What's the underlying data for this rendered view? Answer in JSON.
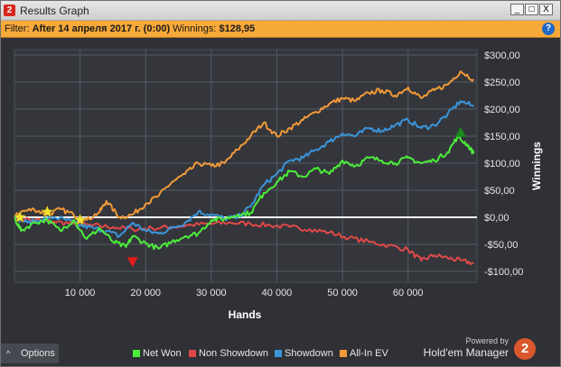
{
  "window": {
    "app_badge": "2",
    "title": "Results Graph",
    "buttons": {
      "minimize": "_",
      "maximize": "□",
      "close": "X"
    }
  },
  "filter": {
    "label": "Filter:",
    "value": "After 14 апреля 2017 г. (0:00)",
    "winnings_label": "Winnings:",
    "winnings_value": "$128,95",
    "help": "?"
  },
  "colors": {
    "background": "#2f3136",
    "plot_background": "#34363c",
    "grid": "#555a62",
    "net_won": "#4ced3a",
    "non_showdown": "#e04848",
    "showdown": "#3b95d9",
    "all_in_ev": "#f29a38",
    "zero_line": "#ffffff",
    "filter_bar": "#f7a93a",
    "marker_star": "#f5e233",
    "marker_min": "#e11b1b",
    "marker_max": "#1a8a1a"
  },
  "chart_data": {
    "type": "line",
    "xlabel": "Hands",
    "ylabel": "Winnings",
    "xlim": [
      0,
      70500
    ],
    "ylim": [
      -120,
      310
    ],
    "x_ticks": [
      {
        "v": 10000,
        "label": "10 000"
      },
      {
        "v": 20000,
        "label": "20 000"
      },
      {
        "v": 30000,
        "label": "30 000"
      },
      {
        "v": 40000,
        "label": "40 000"
      },
      {
        "v": 50000,
        "label": "50 000"
      },
      {
        "v": 60000,
        "label": "60 000"
      }
    ],
    "y_ticks": [
      {
        "v": 300,
        "label": "$300,00"
      },
      {
        "v": 250,
        "label": "$250,00"
      },
      {
        "v": 200,
        "label": "$200,00"
      },
      {
        "v": 150,
        "label": "$150,00"
      },
      {
        "v": 100,
        "label": "$100,00"
      },
      {
        "v": 50,
        "label": "$50,00"
      },
      {
        "v": 0,
        "label": "$0,00"
      },
      {
        "v": -50,
        "label": "-$50,00"
      },
      {
        "v": -100,
        "label": "-$100,00"
      }
    ],
    "grid": true,
    "legend_position": "bottom",
    "series": [
      {
        "name": "Net Won",
        "color_key": "net_won",
        "points": [
          [
            0,
            0
          ],
          [
            1000,
            -25
          ],
          [
            3000,
            -10
          ],
          [
            5000,
            -5
          ],
          [
            7000,
            -25
          ],
          [
            9000,
            -5
          ],
          [
            11000,
            -40
          ],
          [
            13000,
            -20
          ],
          [
            15000,
            -45
          ],
          [
            17000,
            -55
          ],
          [
            18000,
            -35
          ],
          [
            20000,
            -48
          ],
          [
            22000,
            -58
          ],
          [
            24000,
            -45
          ],
          [
            26000,
            -35
          ],
          [
            28000,
            -30
          ],
          [
            30000,
            -5
          ],
          [
            32000,
            -3
          ],
          [
            34000,
            5
          ],
          [
            36000,
            8
          ],
          [
            38000,
            45
          ],
          [
            40000,
            65
          ],
          [
            42000,
            85
          ],
          [
            44000,
            75
          ],
          [
            46000,
            90
          ],
          [
            48000,
            80
          ],
          [
            50000,
            105
          ],
          [
            52000,
            95
          ],
          [
            54000,
            110
          ],
          [
            56000,
            105
          ],
          [
            58000,
            100
          ],
          [
            60000,
            110
          ],
          [
            62000,
            100
          ],
          [
            64000,
            105
          ],
          [
            66000,
            120
          ],
          [
            67500,
            148
          ],
          [
            69000,
            135
          ],
          [
            70000,
            118
          ]
        ]
      },
      {
        "name": "Non Showdown",
        "color_key": "non_showdown",
        "points": [
          [
            0,
            0
          ],
          [
            3000,
            -5
          ],
          [
            6000,
            -8
          ],
          [
            9000,
            -12
          ],
          [
            12000,
            -15
          ],
          [
            15000,
            -18
          ],
          [
            18000,
            -22
          ],
          [
            21000,
            -20
          ],
          [
            24000,
            -18
          ],
          [
            27000,
            -14
          ],
          [
            30000,
            -12
          ],
          [
            33000,
            -10
          ],
          [
            36000,
            -12
          ],
          [
            39000,
            -15
          ],
          [
            42000,
            -18
          ],
          [
            45000,
            -22
          ],
          [
            48000,
            -28
          ],
          [
            51000,
            -38
          ],
          [
            54000,
            -45
          ],
          [
            57000,
            -52
          ],
          [
            60000,
            -60
          ],
          [
            62000,
            -80
          ],
          [
            64000,
            -70
          ],
          [
            66000,
            -75
          ],
          [
            68000,
            -80
          ],
          [
            70000,
            -85
          ]
        ]
      },
      {
        "name": "Showdown",
        "color_key": "showdown",
        "points": [
          [
            0,
            0
          ],
          [
            2000,
            -10
          ],
          [
            4000,
            -5
          ],
          [
            6000,
            0
          ],
          [
            8000,
            -5
          ],
          [
            10000,
            -15
          ],
          [
            12000,
            -20
          ],
          [
            14000,
            -25
          ],
          [
            16000,
            -35
          ],
          [
            18000,
            -10
          ],
          [
            20000,
            -25
          ],
          [
            22000,
            -30
          ],
          [
            24000,
            -20
          ],
          [
            26000,
            -10
          ],
          [
            28000,
            10
          ],
          [
            30000,
            5
          ],
          [
            32000,
            -2
          ],
          [
            34000,
            0
          ],
          [
            36000,
            20
          ],
          [
            38000,
            60
          ],
          [
            40000,
            80
          ],
          [
            42000,
            105
          ],
          [
            44000,
            110
          ],
          [
            46000,
            125
          ],
          [
            48000,
            140
          ],
          [
            50000,
            155
          ],
          [
            52000,
            150
          ],
          [
            54000,
            165
          ],
          [
            56000,
            160
          ],
          [
            58000,
            170
          ],
          [
            60000,
            180
          ],
          [
            62000,
            165
          ],
          [
            64000,
            170
          ],
          [
            66000,
            190
          ],
          [
            68000,
            215
          ],
          [
            70000,
            205
          ]
        ]
      },
      {
        "name": "All-In EV",
        "color_key": "all_in_ev",
        "points": [
          [
            0,
            0
          ],
          [
            1000,
            10
          ],
          [
            3000,
            15
          ],
          [
            5000,
            5
          ],
          [
            7000,
            15
          ],
          [
            9000,
            5
          ],
          [
            11000,
            -5
          ],
          [
            13000,
            10
          ],
          [
            14000,
            30
          ],
          [
            16000,
            0
          ],
          [
            18000,
            5
          ],
          [
            20000,
            25
          ],
          [
            22000,
            40
          ],
          [
            24000,
            65
          ],
          [
            26000,
            80
          ],
          [
            28000,
            100
          ],
          [
            30000,
            95
          ],
          [
            32000,
            100
          ],
          [
            34000,
            125
          ],
          [
            36000,
            150
          ],
          [
            38000,
            175
          ],
          [
            40000,
            150
          ],
          [
            42000,
            165
          ],
          [
            44000,
            180
          ],
          [
            46000,
            195
          ],
          [
            48000,
            210
          ],
          [
            50000,
            220
          ],
          [
            52000,
            215
          ],
          [
            54000,
            230
          ],
          [
            56000,
            235
          ],
          [
            58000,
            225
          ],
          [
            60000,
            240
          ],
          [
            62000,
            220
          ],
          [
            64000,
            235
          ],
          [
            66000,
            245
          ],
          [
            68000,
            270
          ],
          [
            70000,
            255
          ]
        ]
      }
    ],
    "markers": [
      {
        "type": "star",
        "x": 0,
        "y": 0,
        "color_key": "marker_star"
      },
      {
        "type": "star",
        "x": 5000,
        "y": 10,
        "color_key": "marker_star"
      },
      {
        "type": "star",
        "x": 10000,
        "y": -5,
        "color_key": "marker_star"
      },
      {
        "type": "triangle-down",
        "x": 18000,
        "y": -82,
        "color_key": "marker_min"
      },
      {
        "type": "triangle-up",
        "x": 68000,
        "y": 157,
        "color_key": "marker_max"
      }
    ]
  },
  "bottom": {
    "options_caret": "^",
    "options_label": "Options",
    "legend": [
      {
        "label": "Net Won",
        "color_key": "net_won"
      },
      {
        "label": "Non Showdown",
        "color_key": "non_showdown"
      },
      {
        "label": "Showdown",
        "color_key": "showdown"
      },
      {
        "label": "All-In EV",
        "color_key": "all_in_ev"
      }
    ],
    "powered_by": "Powered by",
    "brand": "Hold'em Manager",
    "brand_badge": "2"
  }
}
